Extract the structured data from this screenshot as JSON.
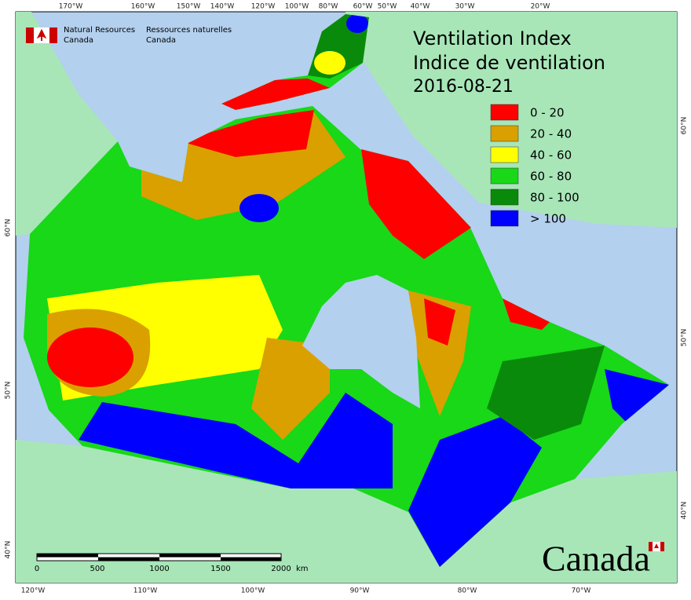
{
  "header": {
    "agency_en": [
      "Natural Resources",
      "Canada"
    ],
    "agency_fr": [
      "Ressources naturelles",
      "Canada"
    ]
  },
  "title": [
    "Ventilation Index",
    "Indice de ventilation",
    "2016-08-21"
  ],
  "legend": [
    {
      "label": "0 - 20",
      "color": "#ff0000"
    },
    {
      "label": "20 - 40",
      "color": "#daa000"
    },
    {
      "label": "40 - 60",
      "color": "#ffff00"
    },
    {
      "label": "60 - 80",
      "color": "#18d818"
    },
    {
      "label": "80 - 100",
      "color": "#0a8a0a"
    },
    {
      "label": "> 100",
      "color": "#0000ff"
    }
  ],
  "scale_bar": {
    "ticks": [
      0,
      500,
      1000,
      1500,
      2000
    ],
    "unit": "km"
  },
  "graticule": {
    "top": [
      "170°W",
      "160°W",
      "150°W",
      "140°W",
      "120°W",
      "100°W",
      "80°W",
      "60°W",
      "50°W",
      "40°W",
      "30°W",
      "20°W"
    ],
    "bottom": [
      "120°W",
      "110°W",
      "100°W",
      "90°W",
      "80°W",
      "70°W"
    ],
    "left": [
      "60°N",
      "50°N",
      "40°N"
    ],
    "right": [
      "60°N",
      "50°N",
      "40°N"
    ]
  },
  "wordmark": "Canada"
}
